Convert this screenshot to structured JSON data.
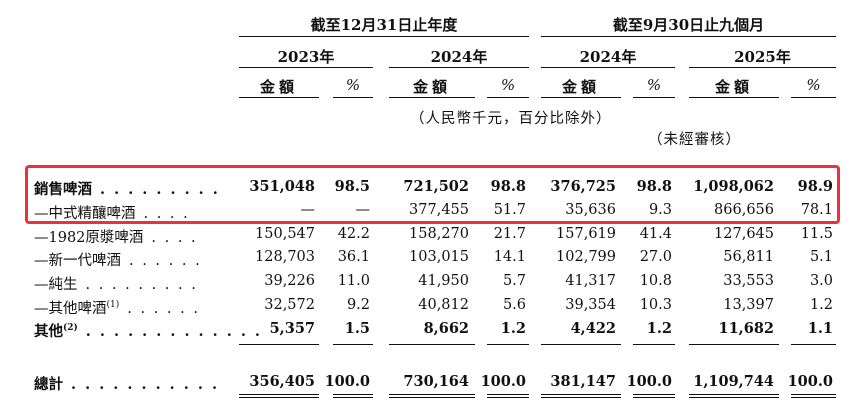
{
  "header": {
    "group1": "截至12月31日止年度",
    "group2": "截至9月30日止九個月",
    "years": [
      "2023年",
      "2024年",
      "2024年",
      "2025年"
    ],
    "amount_label": "金額",
    "pct_label": "%",
    "unit_note": "（人民幣千元，百分比除外）",
    "unaudited_note": "（未經審核）"
  },
  "rows": [
    {
      "label": "銷售啤酒",
      "sup": "",
      "bold": true,
      "values": [
        "351,048",
        "98.5",
        "721,502",
        "98.8",
        "376,725",
        "98.8",
        "1,098,062",
        "98.9"
      ]
    },
    {
      "label": "—中式精釀啤酒",
      "sup": "",
      "bold": false,
      "values": [
        "—",
        "—",
        "377,455",
        "51.7",
        "35,636",
        "9.3",
        "866,656",
        "78.1"
      ]
    },
    {
      "label": "—1982原漿啤酒",
      "sup": "",
      "bold": false,
      "values": [
        "150,547",
        "42.2",
        "158,270",
        "21.7",
        "157,619",
        "41.4",
        "127,645",
        "11.5"
      ]
    },
    {
      "label": "—新一代啤酒",
      "sup": "",
      "bold": false,
      "values": [
        "128,703",
        "36.1",
        "103,015",
        "14.1",
        "102,799",
        "27.0",
        "56,811",
        "5.1"
      ]
    },
    {
      "label": "—純生",
      "sup": "",
      "bold": false,
      "values": [
        "39,226",
        "11.0",
        "41,950",
        "5.7",
        "41,317",
        "10.8",
        "33,553",
        "3.0"
      ]
    },
    {
      "label": "—其他啤酒",
      "sup": "(1)",
      "bold": false,
      "values": [
        "32,572",
        "9.2",
        "40,812",
        "5.6",
        "39,354",
        "10.3",
        "13,397",
        "1.2"
      ]
    },
    {
      "label": "其他",
      "sup": "(2)",
      "bold": true,
      "values": [
        "5,357",
        "1.5",
        "8,662",
        "1.2",
        "4,422",
        "1.2",
        "11,682",
        "1.1"
      ]
    }
  ],
  "total": {
    "label": "總計",
    "values": [
      "356,405",
      "100.0",
      "730,164",
      "100.0",
      "381,147",
      "100.0",
      "1,109,744",
      "100.0"
    ]
  }
}
